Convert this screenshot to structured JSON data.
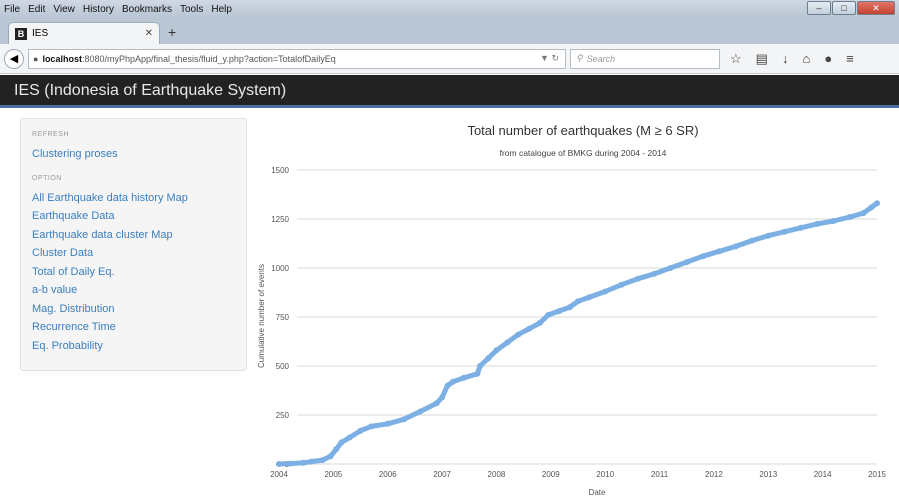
{
  "browser": {
    "menu": [
      "File",
      "Edit",
      "View",
      "History",
      "Bookmarks",
      "Tools",
      "Help"
    ],
    "tab_title": "IES",
    "tab_favicon": "B",
    "url_host": "localhost",
    "url_rest": ":8080/myPhpApp/final_thesis/fluid_y.php?action=TotalofDailyEq",
    "search_placeholder": "Search"
  },
  "app": {
    "title": "IES (Indonesia of Earthquake System)"
  },
  "sidebar": {
    "refresh_header": "REFRESH",
    "refresh_items": [
      "Clustering proses"
    ],
    "option_header": "OPTION",
    "option_items": [
      "All Earthquake data history Map",
      "Earthquake Data",
      "Earthquake data cluster Map",
      "Cluster Data",
      "Total of Daily Eq.",
      "a-b value",
      "Mag. Distribution",
      "Recurrence Time",
      "Eq. Probability"
    ]
  },
  "colors": {
    "series": "#7cb0e4",
    "header_bg": "#222222",
    "link": "#3a7fc0"
  },
  "chart_data": {
    "type": "scatter",
    "title": "Total number of earthquakes (M ≥ 6 SR)",
    "subtitle": "from catalogue of BMKG during 2004 - 2014",
    "xlabel": "Date",
    "ylabel": "Cumulative number of events",
    "xlim": [
      2004,
      2015
    ],
    "ylim": [
      0,
      1500
    ],
    "xticks": [
      "2004",
      "2005",
      "2006",
      "2007",
      "2008",
      "2009",
      "2010",
      "2011",
      "2012",
      "2013",
      "2014",
      "2015"
    ],
    "yticks": [
      "0",
      "250",
      "500",
      "750",
      "1000",
      "1250",
      "1500"
    ],
    "grid": true,
    "points": [
      [
        2004.0,
        0
      ],
      [
        2004.2,
        2
      ],
      [
        2004.45,
        6
      ],
      [
        2004.6,
        12
      ],
      [
        2004.8,
        20
      ],
      [
        2004.95,
        40
      ],
      [
        2005.05,
        75
      ],
      [
        2005.15,
        110
      ],
      [
        2005.3,
        135
      ],
      [
        2005.5,
        170
      ],
      [
        2005.7,
        192
      ],
      [
        2006.0,
        205
      ],
      [
        2006.3,
        228
      ],
      [
        2006.6,
        268
      ],
      [
        2006.9,
        310
      ],
      [
        2007.0,
        340
      ],
      [
        2007.1,
        400
      ],
      [
        2007.2,
        420
      ],
      [
        2007.4,
        440
      ],
      [
        2007.65,
        460
      ],
      [
        2007.7,
        500
      ],
      [
        2007.85,
        540
      ],
      [
        2008.0,
        580
      ],
      [
        2008.2,
        620
      ],
      [
        2008.4,
        660
      ],
      [
        2008.6,
        690
      ],
      [
        2008.8,
        720
      ],
      [
        2008.95,
        760
      ],
      [
        2009.15,
        780
      ],
      [
        2009.35,
        800
      ],
      [
        2009.5,
        830
      ],
      [
        2009.7,
        850
      ],
      [
        2010.0,
        880
      ],
      [
        2010.3,
        915
      ],
      [
        2010.6,
        945
      ],
      [
        2010.9,
        970
      ],
      [
        2011.2,
        1000
      ],
      [
        2011.5,
        1030
      ],
      [
        2011.8,
        1060
      ],
      [
        2012.1,
        1085
      ],
      [
        2012.4,
        1110
      ],
      [
        2012.7,
        1140
      ],
      [
        2013.0,
        1165
      ],
      [
        2013.3,
        1185
      ],
      [
        2013.6,
        1205
      ],
      [
        2013.9,
        1225
      ],
      [
        2014.2,
        1240
      ],
      [
        2014.5,
        1260
      ],
      [
        2014.75,
        1280
      ],
      [
        2014.9,
        1310
      ],
      [
        2015.0,
        1330
      ]
    ]
  }
}
